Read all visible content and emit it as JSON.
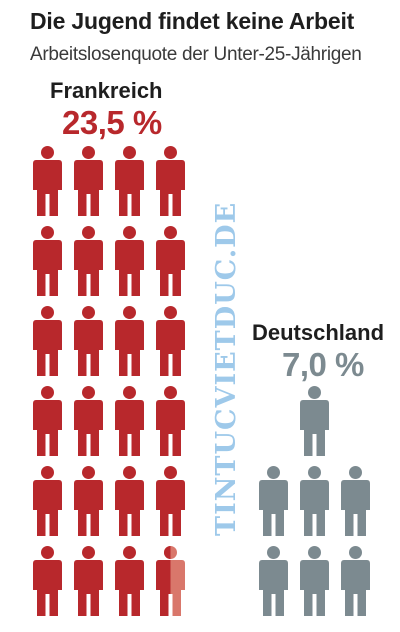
{
  "header": {
    "title": "Die Jugend findet keine Arbeit",
    "subtitle": "Arbeitslosenquote der Unter-25-Jährigen"
  },
  "watermark": {
    "text": "TINTUCVIETDUC.DE"
  },
  "colors": {
    "france": "#b8282c",
    "france_partial": "#d9776b",
    "germany": "#7c8a90",
    "watermark": "#9ec9ea"
  },
  "chart_data": {
    "type": "pictogram",
    "title": "Die Jugend findet keine Arbeit",
    "subtitle": "Arbeitslosenquote der Unter-25-Jährigen",
    "unit": "%",
    "person_value": 1,
    "series": [
      {
        "name": "Frankreich",
        "label": "23,5 %",
        "value": 23.5,
        "color": "#b8282c"
      },
      {
        "name": "Deutschland",
        "label": "7,0 %",
        "value": 7.0,
        "color": "#7c8a90"
      }
    ]
  }
}
